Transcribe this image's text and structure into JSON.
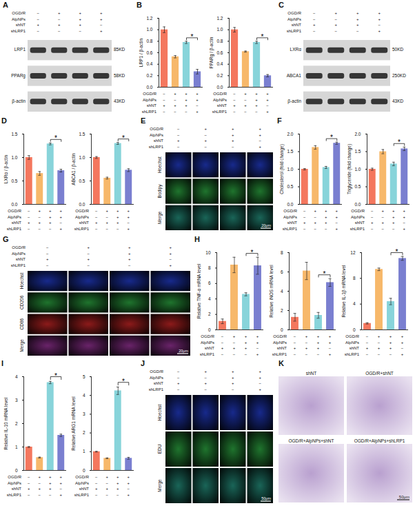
{
  "conditions": {
    "names": [
      "OGD/R",
      "AlpNPs",
      "shNT",
      "shLRP1"
    ],
    "signs": [
      [
        "−",
        "+",
        "+",
        "+"
      ],
      [
        "−",
        "−",
        "+",
        "+"
      ],
      [
        "+",
        "+",
        "+",
        "−"
      ],
      [
        "−",
        "−",
        "−",
        "+"
      ]
    ]
  },
  "chart_data": [
    {
      "panel": "B",
      "type": "bar",
      "y_label": "LRP1 / β-actin",
      "categories": [
        null,
        null,
        null,
        null
      ],
      "values": [
        1.0,
        0.53,
        0.78,
        0.27
      ],
      "errors": [
        0.05,
        0.02,
        0.02,
        0.04
      ],
      "colors": [
        "#f4775e",
        "#f7b86a",
        "#88d4da",
        "#7a7fd0"
      ],
      "ylim": [
        0,
        1.2
      ],
      "yticks": [
        {
          "value": 0,
          "label": "0.0"
        },
        0.2,
        0.4,
        0.6,
        0.8,
        {
          "value": 1,
          "label": "1.0"
        },
        1.2
      ],
      "annotations": [
        {
          "text": "*",
          "between": [
            2,
            3
          ]
        }
      ]
    },
    {
      "type": "bar",
      "y_label": "PPARg / β-actin",
      "categories": [
        null,
        null,
        null,
        null
      ],
      "values": [
        1.0,
        0.62,
        0.78,
        0.2
      ],
      "errors": [
        0.04,
        0.01,
        0.02,
        0.02
      ],
      "colors": [
        "#f4775e",
        "#f7b86a",
        "#88d4da",
        "#7a7fd0"
      ],
      "ylim": [
        0,
        1.2
      ],
      "yticks": [
        {
          "value": 0,
          "label": "0.0"
        },
        0.2,
        0.4,
        0.6,
        0.8,
        {
          "value": 1,
          "label": "1.0"
        },
        1.2
      ],
      "annotations": [
        {
          "text": "*",
          "between": [
            2,
            3
          ]
        }
      ]
    },
    {
      "panel": "D",
      "type": "bar",
      "y_label": "LXRα / β-actin",
      "categories": [
        null,
        null,
        null,
        null
      ],
      "values": [
        1.0,
        0.66,
        1.29,
        0.72
      ],
      "errors": [
        0.04,
        0.04,
        0.02,
        0.03
      ],
      "colors": [
        "#f4775e",
        "#f7b86a",
        "#88d4da",
        "#7a7fd0"
      ],
      "ylim": [
        0,
        1.5
      ],
      "yticks": [
        {
          "value": 0,
          "label": "0.0"
        },
        0.5,
        {
          "value": 1,
          "label": "1.0"
        },
        1.5
      ],
      "annotations": [
        {
          "text": "*",
          "between": [
            2,
            3
          ]
        }
      ]
    },
    {
      "type": "bar",
      "y_label": "ABCA1 / β-actin",
      "categories": [
        null,
        null,
        null,
        null
      ],
      "values": [
        1.0,
        0.56,
        1.3,
        0.73
      ],
      "errors": [
        0.02,
        0.02,
        0.02,
        0.03
      ],
      "colors": [
        "#f4775e",
        "#f7b86a",
        "#88d4da",
        "#7a7fd0"
      ],
      "ylim": [
        0,
        1.5
      ],
      "yticks": [
        {
          "value": 0,
          "label": "0.0"
        },
        0.5,
        {
          "value": 1,
          "label": "1.0"
        },
        1.5
      ],
      "annotations": [
        {
          "text": "*",
          "between": [
            2,
            3
          ]
        }
      ]
    },
    {
      "panel": "F",
      "type": "bar",
      "y_label": "Cholesterol (fold change)",
      "categories": [
        null,
        null,
        null,
        null
      ],
      "values": [
        1.0,
        1.62,
        1.05,
        1.74
      ],
      "errors": [
        0.02,
        0.05,
        0.03,
        0.03
      ],
      "colors": [
        "#f4775e",
        "#f7b86a",
        "#88d4da",
        "#7a7fd0"
      ],
      "ylim": [
        0,
        2
      ],
      "yticks": [
        {
          "value": 0,
          "label": "0.0"
        },
        0.5,
        {
          "value": 1,
          "label": "1.0"
        },
        1.5,
        {
          "value": 2,
          "label": "2.0"
        }
      ],
      "annotations": [
        {
          "text": "*",
          "between": [
            2,
            3
          ]
        }
      ]
    },
    {
      "type": "bar",
      "y_label": "Triglyceride (fold change)",
      "categories": [
        null,
        null,
        null,
        null
      ],
      "values": [
        1.0,
        1.5,
        1.15,
        1.58
      ],
      "errors": [
        0.03,
        0.06,
        0.05,
        0.05
      ],
      "colors": [
        "#f4775e",
        "#f7b86a",
        "#88d4da",
        "#7a7fd0"
      ],
      "ylim": [
        0,
        2
      ],
      "yticks": [
        {
          "value": 0,
          "label": "0.0"
        },
        0.5,
        {
          "value": 1,
          "label": "1.0"
        },
        1.5,
        {
          "value": 2,
          "label": "2.0"
        }
      ],
      "annotations": [
        {
          "text": "*",
          "between": [
            2,
            3
          ]
        }
      ]
    },
    {
      "panel": "H",
      "type": "bar",
      "y_label": "Relative TNF-α mRNA level",
      "categories": [
        null,
        null,
        null,
        null
      ],
      "values": [
        1.1,
        8.4,
        4.6,
        8.3
      ],
      "errors": [
        0.3,
        1.0,
        0.2,
        1.1
      ],
      "colors": [
        "#f4775e",
        "#f7b86a",
        "#88d4da",
        "#7a7fd0"
      ],
      "ylim": [
        0,
        10
      ],
      "yticks": [
        0,
        2,
        4,
        6,
        8,
        10
      ],
      "annotations": [
        {
          "text": "*",
          "between": [
            2,
            3
          ]
        }
      ]
    },
    {
      "type": "bar",
      "y_label": "Relative iNOS mRNA level",
      "categories": [
        null,
        null,
        null,
        null
      ],
      "values": [
        1.3,
        6.1,
        1.5,
        4.9
      ],
      "errors": [
        0.4,
        0.9,
        0.3,
        0.4
      ],
      "colors": [
        "#f4775e",
        "#f7b86a",
        "#88d4da",
        "#7a7fd0"
      ],
      "ylim": [
        0,
        8
      ],
      "yticks": [
        0,
        2,
        4,
        6,
        8
      ],
      "annotations": [
        {
          "text": "*",
          "between": [
            2,
            3
          ]
        }
      ]
    },
    {
      "type": "bar",
      "y_label": "Relative IL-1β mRNA level",
      "categories": [
        null,
        null,
        null,
        null
      ],
      "values": [
        1.0,
        9.4,
        4.4,
        11.1
      ],
      "errors": [
        0.1,
        0.2,
        0.5,
        0.3
      ],
      "colors": [
        "#f4775e",
        "#f7b86a",
        "#88d4da",
        "#7a7fd0"
      ],
      "ylim": [
        0,
        12
      ],
      "yticks": [
        0,
        4,
        8,
        12
      ],
      "annotations": [
        {
          "text": "*",
          "between": [
            2,
            3
          ]
        }
      ]
    },
    {
      "panel": "I",
      "type": "bar",
      "y_label": "Relative IL-10 mRNA level",
      "categories": [
        null,
        null,
        null,
        null
      ],
      "values": [
        1.0,
        0.55,
        3.75,
        1.5
      ],
      "errors": [
        0.02,
        0.02,
        0.05,
        0.05
      ],
      "colors": [
        "#f4775e",
        "#f7b86a",
        "#88d4da",
        "#7a7fd0"
      ],
      "ylim": [
        0,
        4
      ],
      "yticks": [
        0,
        1,
        2,
        3,
        4
      ],
      "annotations": [
        {
          "text": "*",
          "between": [
            2,
            3
          ]
        }
      ]
    },
    {
      "type": "bar",
      "y_label": "Relative ARG1 mRNA level",
      "categories": [
        null,
        null,
        null,
        null
      ],
      "values": [
        1.0,
        0.65,
        4.25,
        0.65
      ],
      "errors": [
        0.02,
        0.02,
        0.2,
        0.05
      ],
      "colors": [
        "#f4775e",
        "#f7b86a",
        "#88d4da",
        "#7a7fd0"
      ],
      "ylim": [
        0,
        5
      ],
      "yticks": [
        0,
        1,
        2,
        3,
        4,
        5
      ],
      "annotations": [
        {
          "text": "*",
          "between": [
            2,
            3
          ]
        }
      ]
    }
  ],
  "figure_panels": [
    {
      "panel": "A",
      "type": "blot",
      "rows": [
        {
          "label": "LRP1",
          "size": "85KD"
        },
        {
          "label": "PPARg",
          "size": "58KD"
        },
        {
          "label": "β-actin",
          "size": "43KD"
        }
      ]
    },
    {
      "panel": "C",
      "type": "blot",
      "rows": [
        {
          "label": "LXRα",
          "size": "50KD"
        },
        {
          "label": "ABCA1",
          "size": "250KD"
        },
        {
          "label": "β-actin",
          "size": "43KD"
        }
      ]
    },
    {
      "panel": "E",
      "type": "micrograph",
      "rows": [
        {
          "label": "Hoechst",
          "color": "#2b4cff"
        },
        {
          "label": "Bodipy",
          "color": "#39d353"
        },
        {
          "label": "Merge",
          "color": "#2fb8a0"
        }
      ],
      "scale_bar": "20μm"
    },
    {
      "panel": "G",
      "type": "micrograph",
      "rows": [
        {
          "label": "Hoechst",
          "color": "#2b4cff"
        },
        {
          "label": "CD206",
          "color": "#39d353"
        },
        {
          "label": "CD86",
          "color": "#ff3030"
        },
        {
          "label": "Merge",
          "color": "#c040c0"
        }
      ],
      "scale_bar": "20μm"
    },
    {
      "panel": "J",
      "type": "micrograph",
      "rows": [
        {
          "label": "Hoechst",
          "color": "#2b4cff"
        },
        {
          "label": "EDU",
          "color": "#39d353"
        },
        {
          "label": "Merge",
          "color": "#2fb8a0"
        }
      ],
      "scale_bar": "50μm"
    },
    {
      "panel": "K",
      "type": "transwell",
      "images": [
        "shNT",
        "OGD/R+shNT",
        "OGD/R+AlpNPs+shNT",
        "OGD/R+AlpNPs+shLRP1"
      ],
      "color": "#8b62b0",
      "scale_bar": "50μm"
    }
  ]
}
